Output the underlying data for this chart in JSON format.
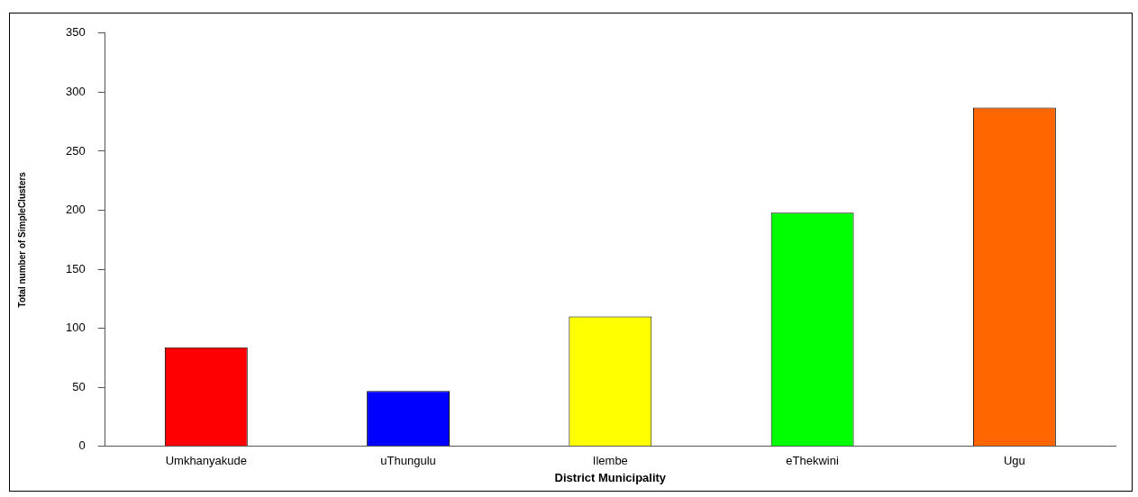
{
  "chart_data": {
    "type": "bar",
    "xlabel": "District Municipality",
    "ylabel": "Total number of SimpleClusters",
    "categories": [
      "Umkhanyakude",
      "uThungulu",
      "Ilembe",
      "eThekwini",
      "Ugu"
    ],
    "values": [
      84,
      47,
      110,
      198,
      287
    ],
    "colors": [
      "#ff0000",
      "#0000ff",
      "#ffff00",
      "#00ff00",
      "#ff6600"
    ],
    "ylim": [
      0,
      350
    ],
    "yticks": [
      0,
      50,
      100,
      150,
      200,
      250,
      300,
      350
    ],
    "grid": false,
    "legend": false
  }
}
